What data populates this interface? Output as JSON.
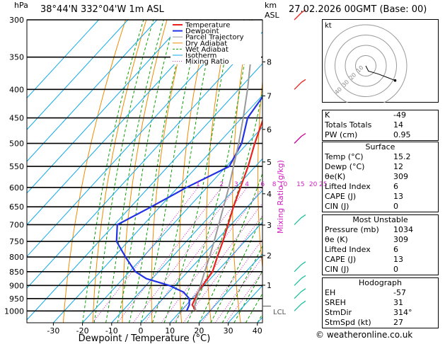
{
  "header": {
    "hpa_label": "hPa",
    "location": "38°44'N  332°04'W  1m  ASL",
    "km_label": "km",
    "asl_label": "ASL",
    "datetime": "27.02.2026  00GMT  (Base: 00)"
  },
  "chart_data": {
    "type": "line",
    "title": "Skew-T log-P diagram",
    "xlabel": "Dewpoint / Temperature (°C)",
    "ylabel": "hPa",
    "mixing_ratio_axis_label": "Mixing Ratio (g/kg)",
    "x_ticks": [
      -30,
      -20,
      -10,
      0,
      10,
      20,
      30,
      40
    ],
    "pressure_levels": [
      300,
      350,
      400,
      450,
      500,
      550,
      600,
      650,
      700,
      750,
      800,
      850,
      900,
      950,
      1000
    ],
    "km_ticks": [
      {
        "label": "8",
        "p": 357
      },
      {
        "label": "7",
        "p": 411
      },
      {
        "label": "6",
        "p": 472
      },
      {
        "label": "5",
        "p": 540
      },
      {
        "label": "4",
        "p": 616
      },
      {
        "label": "3",
        "p": 701
      },
      {
        "label": "2",
        "p": 795
      },
      {
        "label": "1",
        "p": 899
      }
    ],
    "lcl_label": "LCL",
    "lcl_pressure": 980,
    "mixing_ratio_labels": [
      "1",
      "2",
      "3",
      "4",
      "6",
      "8",
      "10",
      "15",
      "20",
      "25"
    ],
    "legend": [
      {
        "name": "Temperature",
        "color": "#e8231f"
      },
      {
        "name": "Dewpoint",
        "color": "#2231e3"
      },
      {
        "name": "Parcel Trajectory",
        "color": "#999999"
      },
      {
        "name": "Dry Adiabat",
        "color": "#f08a00"
      },
      {
        "name": "Wet Adiabat",
        "color": "#0aa000"
      },
      {
        "name": "Isotherm",
        "color": "#10a8e8"
      },
      {
        "name": "Mixing Ratio",
        "color": "#d020c0"
      }
    ],
    "series": [
      {
        "name": "Temperature",
        "points": [
          [
            1000,
            15.2
          ],
          [
            975,
            12
          ],
          [
            950,
            11
          ],
          [
            925,
            10
          ],
          [
            900,
            9.5
          ],
          [
            850,
            8.5
          ],
          [
            800,
            5.5
          ],
          [
            750,
            2.5
          ],
          [
            700,
            -1
          ],
          [
            650,
            -4.8
          ],
          [
            600,
            -8.5
          ],
          [
            550,
            -12.5
          ],
          [
            500,
            -17.5
          ],
          [
            450,
            -22.5
          ],
          [
            400,
            -28.5
          ],
          [
            350,
            -36
          ],
          [
            300,
            -45
          ]
        ]
      },
      {
        "name": "Dewpoint",
        "points": [
          [
            1000,
            12
          ],
          [
            975,
            11
          ],
          [
            950,
            9
          ],
          [
            925,
            5
          ],
          [
            900,
            -2
          ],
          [
            875,
            -12
          ],
          [
            850,
            -18
          ],
          [
            800,
            -26
          ],
          [
            750,
            -34
          ],
          [
            700,
            -39
          ],
          [
            650,
            -33
          ],
          [
            600,
            -27
          ],
          [
            550,
            -19
          ],
          [
            500,
            -22
          ],
          [
            450,
            -28
          ],
          [
            400,
            -30
          ],
          [
            350,
            -39
          ],
          [
            300,
            -53
          ]
        ]
      },
      {
        "name": "Parcel Trajectory",
        "points": [
          [
            1000,
            15.2
          ],
          [
            980,
            13.2
          ],
          [
            950,
            11.5
          ],
          [
            900,
            8.7
          ],
          [
            850,
            5.8
          ],
          [
            800,
            2.8
          ],
          [
            750,
            -0.5
          ],
          [
            700,
            -4.2
          ],
          [
            650,
            -8.2
          ],
          [
            600,
            -12.5
          ],
          [
            550,
            -17.5
          ],
          [
            500,
            -23
          ],
          [
            450,
            -29.5
          ],
          [
            400,
            -37
          ],
          [
            350,
            -46
          ],
          [
            300,
            -56
          ]
        ]
      }
    ]
  },
  "hodograph": {
    "kt_label": "kt",
    "ring_labels": [
      "10",
      "20",
      "30",
      "40"
    ],
    "points": [
      [
        0,
        0
      ],
      [
        2,
        -4
      ],
      [
        9,
        -6
      ],
      [
        17,
        -9
      ],
      [
        22,
        -11
      ]
    ]
  },
  "indices": [
    {
      "label": "K",
      "value": "-49"
    },
    {
      "label": "Totals Totals",
      "value": "14"
    },
    {
      "label": "PW (cm)",
      "value": "0.95"
    }
  ],
  "surface": {
    "title": "Surface",
    "rows": [
      {
        "label": "Temp (°C)",
        "value": "15.2"
      },
      {
        "label": "Dewp (°C)",
        "value": "12"
      },
      {
        "label": "θe(K)",
        "value": "309"
      },
      {
        "label": "Lifted Index",
        "value": "6"
      },
      {
        "label": "CAPE (J)",
        "value": "13"
      },
      {
        "label": "CIN (J)",
        "value": "0"
      }
    ]
  },
  "most_unstable": {
    "title": "Most Unstable",
    "rows": [
      {
        "label": "Pressure (mb)",
        "value": "1034"
      },
      {
        "label": "θe (K)",
        "value": "309"
      },
      {
        "label": "Lifted Index",
        "value": "6"
      },
      {
        "label": "CAPE (J)",
        "value": "13"
      },
      {
        "label": "CIN (J)",
        "value": "0"
      }
    ]
  },
  "hodograph_table": {
    "title": "Hodograph",
    "rows": [
      {
        "label": "EH",
        "value": "-57"
      },
      {
        "label": "SREH",
        "value": "31"
      },
      {
        "label": "StmDir",
        "value": "314°"
      },
      {
        "label": "StmSpd (kt)",
        "value": "27"
      }
    ]
  },
  "footer": {
    "copyright": "© weatheronline.co.uk"
  },
  "colors": {
    "temperature": "#e8231f",
    "dewpoint": "#2231e3",
    "parcel": "#999999",
    "dry_adiabat": "#f08a00",
    "wet_adiabat": "#0aa000",
    "isotherm": "#10a8e8",
    "mixing_ratio": "#d020c0",
    "wind_barb_upper": "#e8231f",
    "wind_barb_mid": "#cc0099",
    "wind_barb_low": "#20c0a0"
  }
}
